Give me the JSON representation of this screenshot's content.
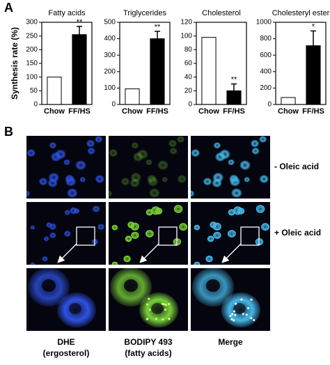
{
  "panel_labels": [
    "A",
    "B"
  ],
  "chart_data": [
    {
      "type": "bar",
      "title": "Fatty acids",
      "ylabel": "Synthesis rate (%)",
      "categories": [
        "Chow",
        "FF/HS"
      ],
      "values": [
        100,
        255
      ],
      "errors": [
        null,
        30
      ],
      "annotations": [
        null,
        "**"
      ],
      "colors": [
        "#ffffff",
        "#000000"
      ],
      "ylim": [
        0,
        300
      ],
      "yticks": [
        0,
        50,
        100,
        150,
        200,
        250,
        300
      ]
    },
    {
      "type": "bar",
      "title": "Triglycerides",
      "categories": [
        "Chow",
        "FF/HS"
      ],
      "values": [
        95,
        400
      ],
      "errors": [
        null,
        45
      ],
      "annotations": [
        null,
        "**"
      ],
      "colors": [
        "#ffffff",
        "#000000"
      ],
      "ylim": [
        0,
        500
      ],
      "yticks": [
        0,
        100,
        200,
        300,
        400,
        500
      ]
    },
    {
      "type": "bar",
      "title": "Cholesterol",
      "categories": [
        "Chow",
        "FF/HS"
      ],
      "values": [
        98,
        20
      ],
      "errors": [
        null,
        10
      ],
      "annotations": [
        null,
        "**"
      ],
      "colors": [
        "#ffffff",
        "#000000"
      ],
      "ylim": [
        0,
        120
      ],
      "yticks": [
        0,
        20,
        40,
        60,
        80,
        100,
        120
      ]
    },
    {
      "type": "bar",
      "title": "Cholesteryl ester",
      "categories": [
        "Chow",
        "FF/HS"
      ],
      "values": [
        85,
        715
      ],
      "errors": [
        null,
        180
      ],
      "annotations": [
        null,
        "*"
      ],
      "colors": [
        "#ffffff",
        "#000000"
      ],
      "ylim": [
        0,
        1000
      ],
      "yticks": [
        0,
        200,
        400,
        600,
        800,
        1000
      ]
    }
  ],
  "microscopy": {
    "row_labels": [
      "- Oleic acid",
      "+ Oleic acid"
    ],
    "columns": [
      {
        "name": "DHE",
        "detail": "(ergosterol)"
      },
      {
        "name": "BODIPY 493",
        "detail": "(fatty acids)"
      },
      {
        "name": "Merge"
      }
    ]
  }
}
